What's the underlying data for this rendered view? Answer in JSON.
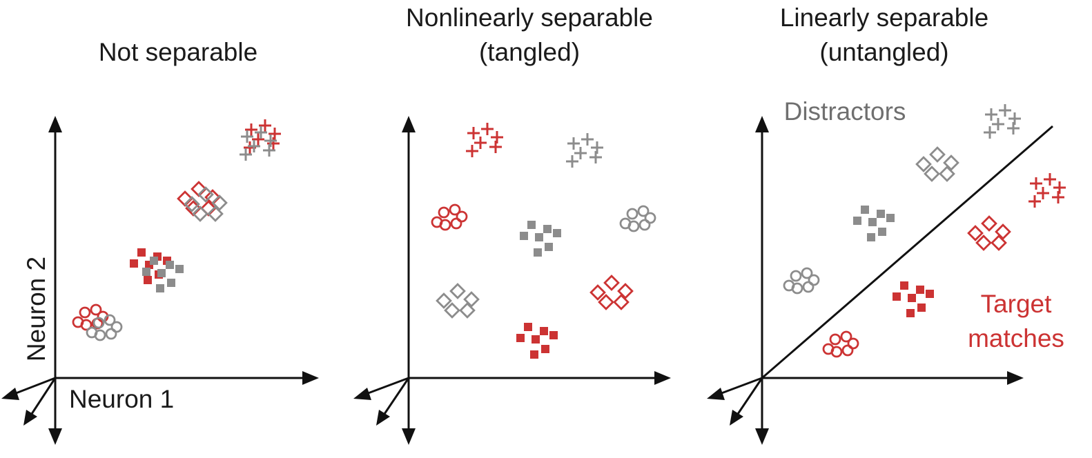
{
  "colors": {
    "red": "#cc3333",
    "gray": "#8c8c8c",
    "black": "#111111"
  },
  "panels": [
    {
      "title_lines": [
        "Not separable"
      ],
      "axis_x_label": "Neuron 1",
      "axis_y_label": "Neuron 2"
    },
    {
      "title_lines": [
        "Nonlinearly separable",
        "(tangled)"
      ]
    },
    {
      "title_lines": [
        "Linearly separable",
        "(untangled)"
      ],
      "annotations": {
        "distractors": "Distractors",
        "target_line1": "Target",
        "target_line2": "matches"
      }
    }
  ]
}
